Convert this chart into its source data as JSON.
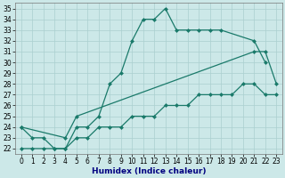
{
  "title": "",
  "xlabel": "Humidex (Indice chaleur)",
  "bg_color": "#cce8e8",
  "line_color": "#1a7a6a",
  "grid_color": "#aacfcf",
  "xlim": [
    -0.5,
    23.5
  ],
  "ylim": [
    21.5,
    35.5
  ],
  "xticks": [
    0,
    1,
    2,
    3,
    4,
    5,
    6,
    7,
    8,
    9,
    10,
    11,
    12,
    13,
    14,
    15,
    16,
    17,
    18,
    19,
    20,
    21,
    22,
    23
  ],
  "yticks": [
    22,
    23,
    24,
    25,
    26,
    27,
    28,
    29,
    30,
    31,
    32,
    33,
    34,
    35
  ],
  "line1_x": [
    0,
    1,
    2,
    3,
    4,
    5,
    6,
    7,
    8,
    9,
    10,
    11,
    12,
    13,
    14,
    15,
    16,
    17,
    18,
    21,
    22
  ],
  "line1_y": [
    24,
    23,
    23,
    22,
    22,
    24,
    24,
    25,
    28,
    29,
    32,
    34,
    34,
    35,
    33,
    33,
    33,
    33,
    33,
    32,
    30
  ],
  "line2_x": [
    0,
    4,
    5,
    21,
    22,
    23
  ],
  "line2_y": [
    24,
    23,
    25,
    31,
    31,
    28
  ],
  "line3_x": [
    0,
    1,
    2,
    3,
    4,
    5,
    6,
    7,
    8,
    9,
    10,
    11,
    12,
    13,
    14,
    15,
    16,
    17,
    18,
    19,
    20,
    21,
    22,
    23
  ],
  "line3_y": [
    22,
    22,
    22,
    22,
    22,
    23,
    23,
    24,
    24,
    24,
    25,
    25,
    25,
    26,
    26,
    26,
    27,
    27,
    27,
    27,
    28,
    28,
    27,
    27
  ],
  "tick_fontsize": 5.5,
  "xlabel_fontsize": 6.5,
  "marker_size": 2.5,
  "line_width": 0.9
}
